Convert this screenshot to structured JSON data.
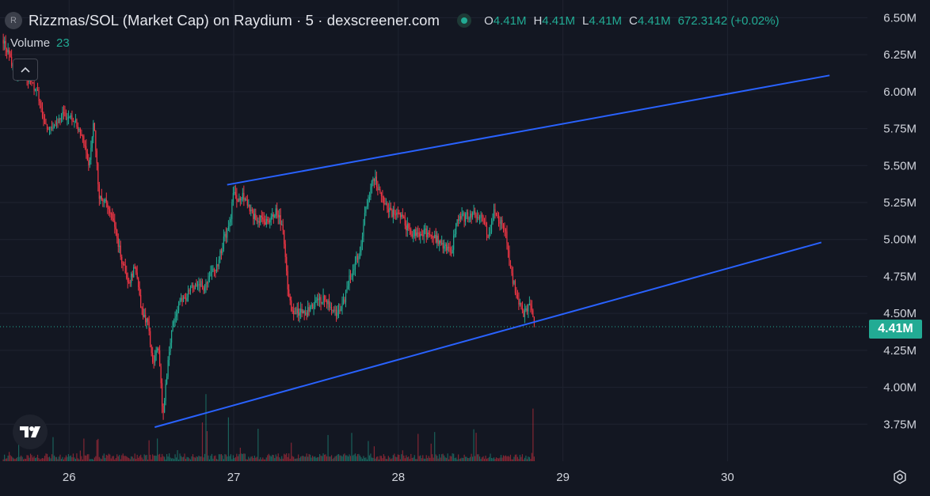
{
  "header": {
    "symbol_icon_letter": "R",
    "title": "Rizzmas/SOL (Market Cap) on Raydium · 5 · dexscreener.com",
    "ohlc": {
      "o_label": "O",
      "o_value": "4.41M",
      "h_label": "H",
      "h_value": "4.41M",
      "l_label": "L",
      "l_value": "4.41M",
      "c_label": "C",
      "c_value": "4.41M",
      "change": "672.3142 (+0.02%)"
    }
  },
  "volume_indicator": {
    "label": "Volume",
    "value": "23"
  },
  "last_price_label": "4.41M",
  "colors": {
    "background": "#131722",
    "up": "#22ab94",
    "down": "#f23645",
    "trendline": "#2962ff",
    "grid": "#1f2330",
    "axis_text": "#d1d4dc"
  },
  "icons": {
    "collapse": "chevron-up-icon",
    "logo": "tradingview-logo-icon",
    "settings": "settings-gear-icon",
    "status": "live-status-dot-icon"
  },
  "chart_data": {
    "type": "line",
    "y_axis": {
      "ticks": [
        3.75,
        4.0,
        4.25,
        4.5,
        4.75,
        5.0,
        5.25,
        5.5,
        5.75,
        6.0,
        6.25,
        6.5
      ],
      "tick_labels": [
        "3.75M",
        "4.00M",
        "4.25M",
        "4.50M",
        "4.75M",
        "5.00M",
        "5.25M",
        "5.50M",
        "5.75M",
        "6.00M",
        "6.25M",
        "6.50M"
      ],
      "range": [
        3.5,
        6.62
      ],
      "unit": "M"
    },
    "x_axis": {
      "ticks": [
        26,
        27,
        28,
        29,
        30
      ],
      "tick_labels": [
        "26",
        "27",
        "28",
        "29",
        "30"
      ],
      "range": [
        25.58,
        30.85
      ]
    },
    "grid": true,
    "price_path": [
      [
        25.6,
        6.35
      ],
      [
        25.64,
        6.22
      ],
      [
        25.68,
        6.12
      ],
      [
        25.72,
        6.18
      ],
      [
        25.76,
        6.06
      ],
      [
        25.8,
        6.02
      ],
      [
        25.84,
        5.82
      ],
      [
        25.88,
        5.74
      ],
      [
        25.92,
        5.79
      ],
      [
        25.96,
        5.85
      ],
      [
        26.0,
        5.82
      ],
      [
        26.04,
        5.79
      ],
      [
        26.08,
        5.7
      ],
      [
        26.12,
        5.5
      ],
      [
        26.15,
        5.8
      ],
      [
        26.18,
        5.3
      ],
      [
        26.22,
        5.25
      ],
      [
        26.27,
        5.14
      ],
      [
        26.32,
        4.85
      ],
      [
        26.36,
        4.7
      ],
      [
        26.4,
        4.82
      ],
      [
        26.44,
        4.52
      ],
      [
        26.48,
        4.42
      ],
      [
        26.51,
        4.15
      ],
      [
        26.54,
        4.3
      ],
      [
        26.57,
        3.8
      ],
      [
        26.6,
        4.18
      ],
      [
        26.63,
        4.42
      ],
      [
        26.66,
        4.55
      ],
      [
        26.7,
        4.6
      ],
      [
        26.74,
        4.66
      ],
      [
        26.78,
        4.7
      ],
      [
        26.82,
        4.68
      ],
      [
        26.86,
        4.75
      ],
      [
        26.9,
        4.82
      ],
      [
        26.94,
        5.0
      ],
      [
        26.98,
        5.12
      ],
      [
        27.0,
        5.35
      ],
      [
        27.03,
        5.25
      ],
      [
        27.06,
        5.3
      ],
      [
        27.1,
        5.18
      ],
      [
        27.14,
        5.15
      ],
      [
        27.18,
        5.12
      ],
      [
        27.22,
        5.14
      ],
      [
        27.26,
        5.2
      ],
      [
        27.3,
        5.06
      ],
      [
        27.33,
        4.65
      ],
      [
        27.36,
        4.48
      ],
      [
        27.4,
        4.52
      ],
      [
        27.44,
        4.5
      ],
      [
        27.48,
        4.56
      ],
      [
        27.52,
        4.58
      ],
      [
        27.55,
        4.62
      ],
      [
        27.6,
        4.52
      ],
      [
        27.65,
        4.5
      ],
      [
        27.7,
        4.72
      ],
      [
        27.74,
        4.84
      ],
      [
        27.77,
        4.95
      ],
      [
        27.8,
        5.2
      ],
      [
        27.84,
        5.38
      ],
      [
        27.86,
        5.42
      ],
      [
        27.88,
        5.32
      ],
      [
        27.92,
        5.24
      ],
      [
        27.96,
        5.18
      ],
      [
        28.0,
        5.2
      ],
      [
        28.04,
        5.1
      ],
      [
        28.08,
        5.05
      ],
      [
        28.12,
        5.04
      ],
      [
        28.16,
        5.05
      ],
      [
        28.2,
        5.02
      ],
      [
        28.24,
        5.0
      ],
      [
        28.28,
        4.95
      ],
      [
        28.32,
        4.9
      ],
      [
        28.36,
        5.15
      ],
      [
        28.4,
        5.15
      ],
      [
        28.44,
        5.16
      ],
      [
        28.48,
        5.17
      ],
      [
        28.52,
        5.12
      ],
      [
        28.55,
        5.0
      ],
      [
        28.58,
        5.18
      ],
      [
        28.62,
        5.12
      ],
      [
        28.65,
        5.05
      ],
      [
        28.68,
        4.8
      ],
      [
        28.72,
        4.62
      ],
      [
        28.76,
        4.5
      ],
      [
        28.8,
        4.55
      ],
      [
        28.83,
        4.41
      ]
    ],
    "last_value": 4.41,
    "volume_max_hint": "relative",
    "trendlines": [
      {
        "from": [
          26.96,
          5.37
        ],
        "to": [
          30.62,
          6.11
        ]
      },
      {
        "from": [
          26.52,
          3.73
        ],
        "to": [
          30.57,
          4.98
        ]
      }
    ]
  }
}
